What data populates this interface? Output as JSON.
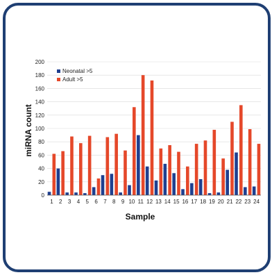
{
  "chart_data": {
    "type": "bar",
    "xlabel": "Sample",
    "ylabel": "miRNA count",
    "ylim": [
      0,
      200
    ],
    "yticks": [
      0,
      20,
      40,
      60,
      80,
      100,
      120,
      140,
      160,
      180,
      200
    ],
    "grid": true,
    "legend_position": "top-left",
    "categories": [
      "1",
      "2",
      "3",
      "4",
      "5",
      "6",
      "7",
      "8",
      "9",
      "10",
      "11",
      "12",
      "13",
      "14",
      "15",
      "16",
      "17",
      "18",
      "19",
      "20",
      "21",
      "22",
      "23",
      "24"
    ],
    "series": [
      {
        "name": "Neonatal >5",
        "color": "#1f3f8f",
        "values": [
          5,
          40,
          4,
          4,
          3,
          12,
          30,
          32,
          4,
          15,
          90,
          43,
          22,
          47,
          33,
          9,
          18,
          24,
          3,
          4,
          38,
          64,
          12,
          13
        ]
      },
      {
        "name": "Adult >5",
        "color": "#e5482a",
        "values": [
          62,
          66,
          88,
          78,
          89,
          25,
          87,
          92,
          67,
          132,
          180,
          172,
          70,
          75,
          65,
          43,
          77,
          82,
          98,
          55,
          110,
          135,
          99,
          77
        ]
      }
    ]
  }
}
